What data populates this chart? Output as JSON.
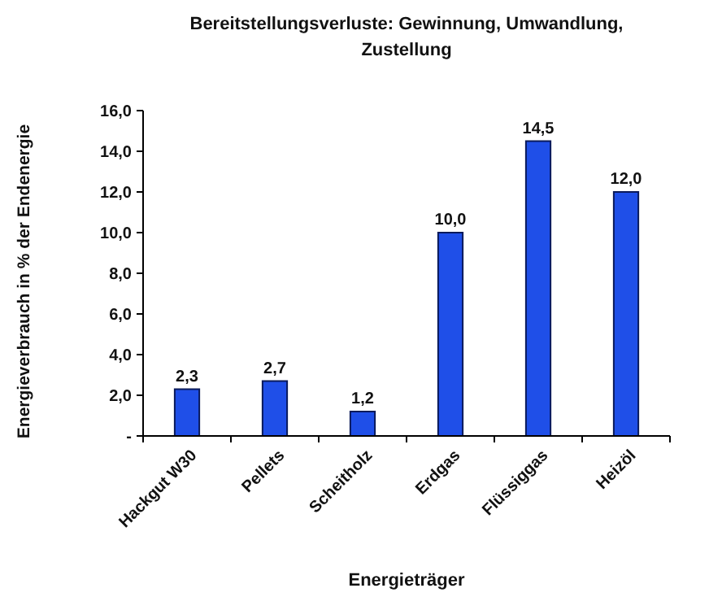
{
  "chart_data": {
    "type": "bar",
    "title": "Bereitstellungsverluste: Gewinnung, Umwandlung, Zustellung",
    "xlabel": "Energieträger",
    "ylabel": "Energieverbrauch in % der Endenergie",
    "categories": [
      "Hackgut W30",
      "Pellets",
      "Scheitholz",
      "Erdgas",
      "Flüssiggas",
      "Heizöl"
    ],
    "values": [
      2.3,
      2.7,
      1.2,
      10.0,
      14.5,
      12.0
    ],
    "color": "#1f4fe8",
    "value_labels": [
      "2,3",
      "2,7",
      "1,2",
      "10,0",
      "14,5",
      "12,0"
    ],
    "ylim": [
      0,
      16
    ],
    "yticks": [
      {
        "value": 0,
        "label": "-"
      },
      {
        "value": 2,
        "label": "2,0"
      },
      {
        "value": 4,
        "label": "4,0"
      },
      {
        "value": 6,
        "label": "6,0"
      },
      {
        "value": 8,
        "label": "8,0"
      },
      {
        "value": 10,
        "label": "10,0"
      },
      {
        "value": 12,
        "label": "12,0"
      },
      {
        "value": 14,
        "label": "14,0"
      },
      {
        "value": 16,
        "label": "16,0"
      }
    ],
    "grid": false
  }
}
